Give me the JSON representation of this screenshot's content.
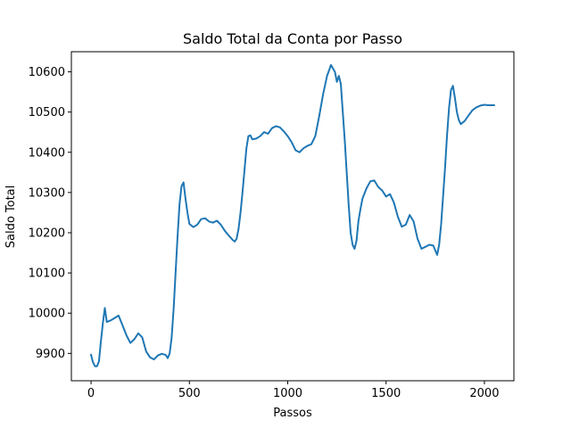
{
  "chart_data": {
    "type": "line",
    "title": "Saldo Total da Conta por Passo",
    "xlabel": "Passos",
    "ylabel": "Saldo Total",
    "xlim": [
      -100,
      2150
    ],
    "ylim": [
      9832,
      10650
    ],
    "xticks": [
      0,
      500,
      1000,
      1500,
      2000
    ],
    "yticks": [
      9900,
      10000,
      10100,
      10200,
      10300,
      10400,
      10500,
      10600
    ],
    "grid": false,
    "line_color": "#1f77b4",
    "series": [
      {
        "x": [
          0,
          10,
          20,
          30,
          40,
          50,
          60,
          70,
          80,
          90,
          100,
          120,
          140,
          160,
          180,
          200,
          220,
          240,
          260,
          280,
          300,
          320,
          340,
          360,
          380,
          390,
          400,
          410,
          420,
          430,
          440,
          450,
          460,
          470,
          480,
          490,
          500,
          520,
          540,
          560,
          580,
          600,
          620,
          640,
          660,
          680,
          700,
          720,
          730,
          740,
          750,
          760,
          770,
          780,
          790,
          800,
          810,
          820,
          840,
          860,
          880,
          900,
          920,
          940,
          960,
          980,
          1000,
          1020,
          1040,
          1060,
          1080,
          1100,
          1120,
          1140,
          1160,
          1180,
          1200,
          1220,
          1240,
          1250,
          1260,
          1270,
          1280,
          1290,
          1300,
          1310,
          1320,
          1330,
          1340,
          1350,
          1360,
          1370,
          1380,
          1400,
          1420,
          1440,
          1460,
          1480,
          1500,
          1520,
          1540,
          1560,
          1580,
          1600,
          1620,
          1640,
          1660,
          1680,
          1700,
          1720,
          1740,
          1760,
          1770,
          1780,
          1790,
          1800,
          1810,
          1820,
          1830,
          1840,
          1850,
          1860,
          1870,
          1880,
          1900,
          1920,
          1940,
          1960,
          1980,
          2000,
          2020,
          2050
        ],
        "y": [
          9897,
          9878,
          9868,
          9868,
          9880,
          9930,
          9975,
          10013,
          9978,
          9980,
          9982,
          9988,
          9994,
          9970,
          9945,
          9926,
          9935,
          9950,
          9940,
          9905,
          9890,
          9885,
          9895,
          9899,
          9896,
          9888,
          9900,
          9940,
          10010,
          10100,
          10190,
          10270,
          10315,
          10325,
          10285,
          10250,
          10222,
          10214,
          10220,
          10234,
          10236,
          10228,
          10225,
          10230,
          10220,
          10205,
          10193,
          10182,
          10178,
          10185,
          10210,
          10250,
          10300,
          10355,
          10410,
          10440,
          10442,
          10432,
          10434,
          10440,
          10450,
          10446,
          10460,
          10465,
          10462,
          10452,
          10440,
          10425,
          10405,
          10400,
          10410,
          10416,
          10420,
          10440,
          10490,
          10545,
          10590,
          10617,
          10600,
          10575,
          10590,
          10570,
          10500,
          10430,
          10350,
          10270,
          10200,
          10170,
          10160,
          10180,
          10230,
          10260,
          10285,
          10310,
          10328,
          10330,
          10314,
          10305,
          10290,
          10296,
          10275,
          10240,
          10215,
          10220,
          10244,
          10228,
          10185,
          10160,
          10165,
          10170,
          10168,
          10145,
          10170,
          10220,
          10290,
          10360,
          10440,
          10510,
          10555,
          10565,
          10535,
          10500,
          10480,
          10470,
          10478,
          10492,
          10505,
          10512,
          10516,
          10518,
          10517,
          10517
        ]
      }
    ]
  }
}
